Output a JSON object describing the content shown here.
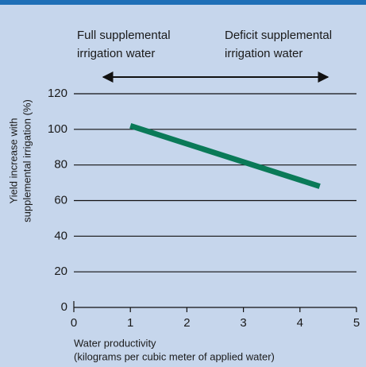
{
  "chart_data": {
    "type": "line",
    "annotations": [
      {
        "lines": [
          "Full supplemental",
          "irrigation water"
        ]
      },
      {
        "lines": [
          "Deficit supplemental",
          "irrigation water"
        ]
      }
    ],
    "ylabel": [
      "Yield increase with",
      "supplemental irrigation (%)"
    ],
    "xlabel": [
      "Water productivity",
      "(kilograms per cubic meter of applied water)"
    ],
    "x": [
      1,
      4.35
    ],
    "series": [
      {
        "name": "Yield increase",
        "color": "#0a7a58",
        "values": [
          102,
          68
        ]
      }
    ],
    "xlim": [
      0,
      5
    ],
    "xticks": [
      0,
      1,
      2,
      3,
      4,
      5
    ],
    "ylim": [
      0,
      120
    ],
    "yticks": [
      0,
      20,
      40,
      60,
      80,
      100,
      120
    ],
    "grid": true
  }
}
